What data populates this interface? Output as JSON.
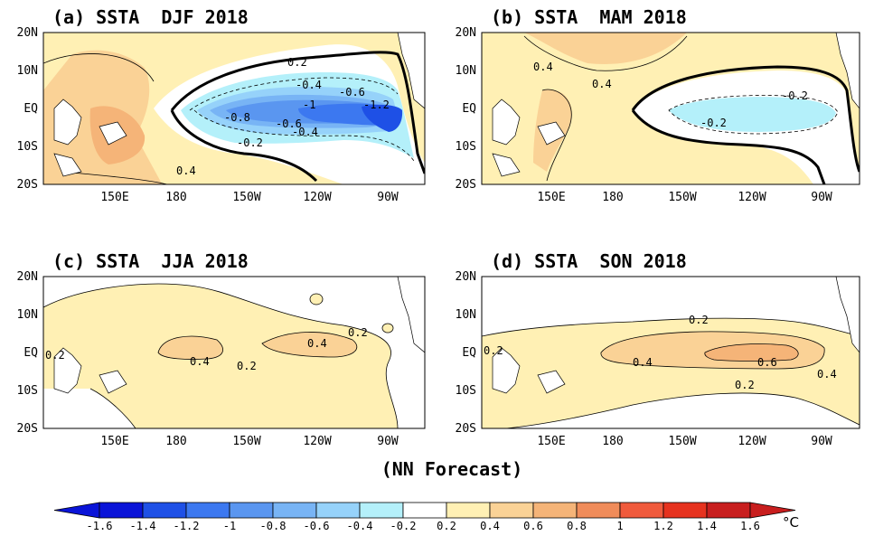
{
  "figure": {
    "caption": "(NN Forecast)",
    "colorbar": {
      "unit": "°C",
      "colors": [
        "#0a14d8",
        "#1e50e6",
        "#3c78f0",
        "#5a96f0",
        "#78b4f5",
        "#96d2fa",
        "#b4f0fa",
        "#ffffff",
        "#fff0b4",
        "#fad296",
        "#f5b478",
        "#f08c5a",
        "#f05a3c",
        "#e6321e",
        "#c81e1e"
      ],
      "tick_labels": [
        "-1.6",
        "-1.4",
        "-1.2",
        "-1",
        "-0.8",
        "-0.6",
        "-0.4",
        "-0.2",
        "0.2",
        "0.4",
        "0.6",
        "0.8",
        "1",
        "1.2",
        "1.4",
        "1.6"
      ]
    }
  },
  "chart_data": [
    {
      "type": "heatmap",
      "panel_label": "(a) SSTA  DJF 2018",
      "x_ticks": [
        "150E",
        "180",
        "150W",
        "120W",
        "90W"
      ],
      "y_ticks": [
        "20N",
        "10N",
        "EQ",
        "10S",
        "20S"
      ],
      "contour_labels": [
        "0.2",
        "-0.4",
        "-0.6",
        "-1",
        "-1.2",
        "-0.8",
        "-0.6",
        "-0.4",
        "-0.2",
        "0.4"
      ],
      "extreme_value": -1.4
    },
    {
      "type": "heatmap",
      "panel_label": "(b) SSTA  MAM 2018",
      "x_ticks": [
        "150E",
        "180",
        "150W",
        "120W",
        "90W"
      ],
      "y_ticks": [
        "20N",
        "10N",
        "EQ",
        "10S",
        "20S"
      ],
      "contour_labels": [
        "0.4",
        "0.4",
        "-0.2",
        "-0.2"
      ],
      "extreme_value": -0.4
    },
    {
      "type": "heatmap",
      "panel_label": "(c) SSTA  JJA 2018",
      "x_ticks": [
        "150E",
        "180",
        "150W",
        "120W",
        "90W"
      ],
      "y_ticks": [
        "20N",
        "10N",
        "EQ",
        "10S",
        "20S"
      ],
      "contour_labels": [
        "0.2",
        "0.2",
        "0.4",
        "0.4",
        "0.2"
      ],
      "extreme_value": 0.5
    },
    {
      "type": "heatmap",
      "panel_label": "(d) SSTA  SON 2018",
      "x_ticks": [
        "150E",
        "180",
        "150W",
        "120W",
        "90W"
      ],
      "y_ticks": [
        "20N",
        "10N",
        "EQ",
        "10S",
        "20S"
      ],
      "contour_labels": [
        "0.2",
        "0.2",
        "0.4",
        "0.6",
        "0.4",
        "0.2"
      ],
      "extreme_value": 0.7
    }
  ]
}
